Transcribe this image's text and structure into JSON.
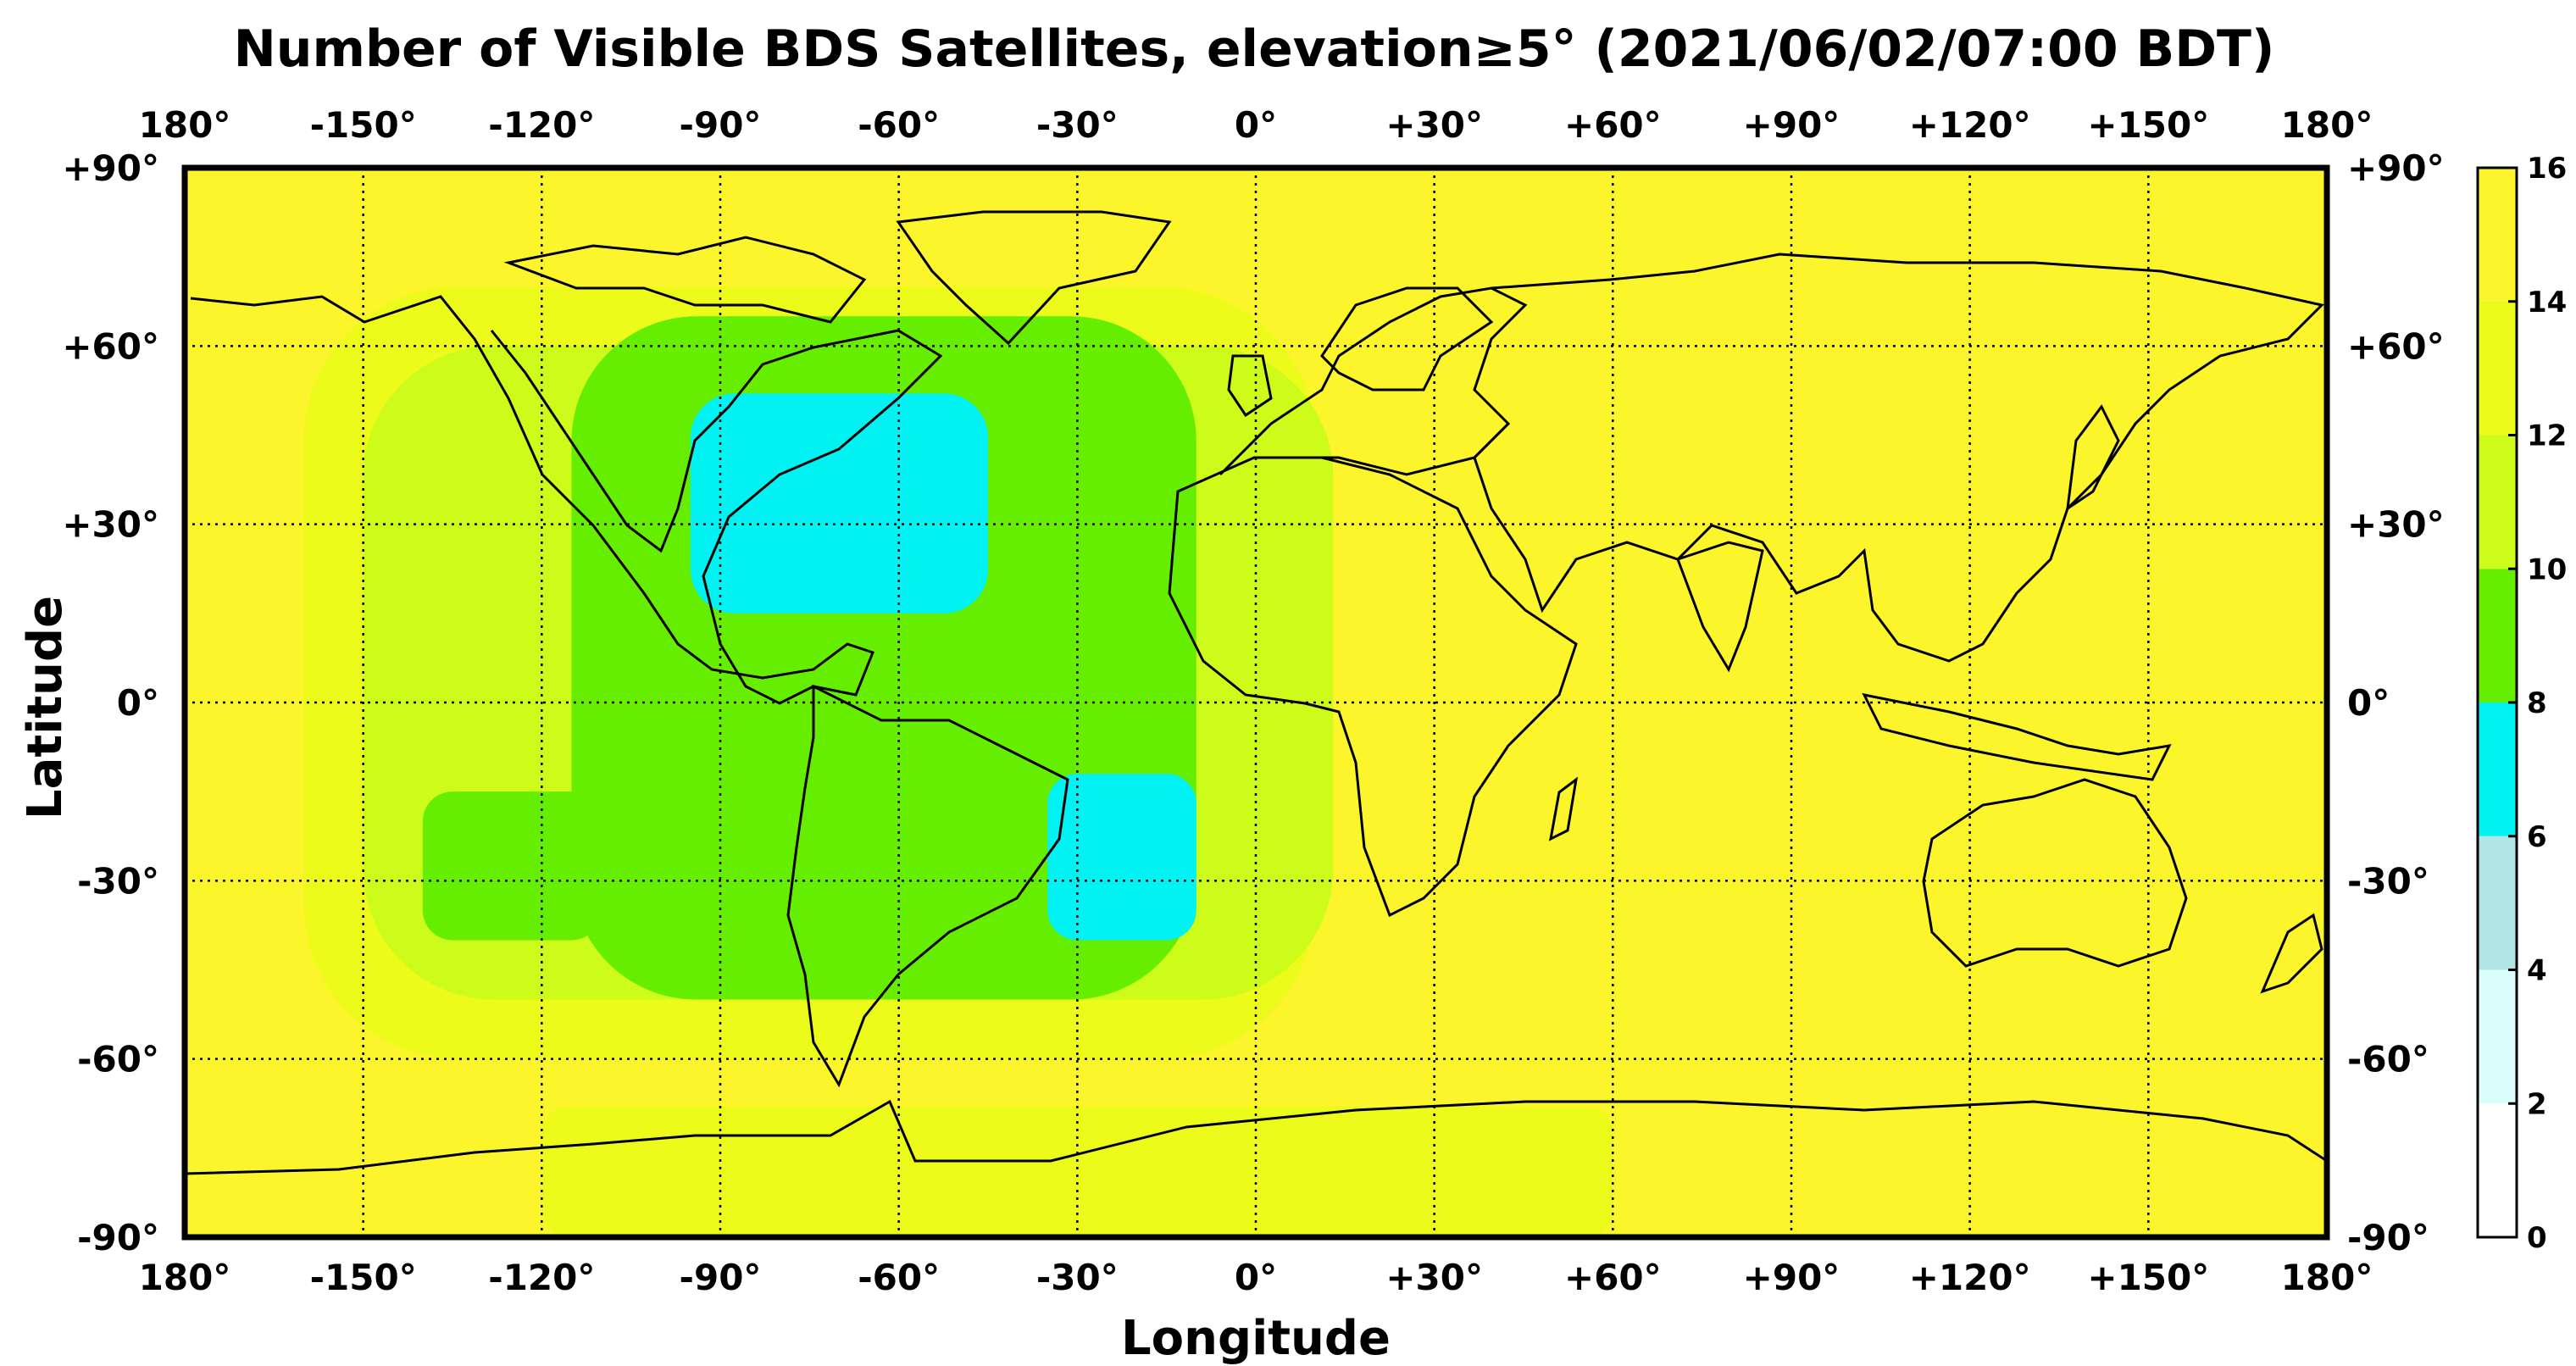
{
  "title": "Number of Visible BDS Satellites, elevation≥5° (2021/06/02/07:00 BDT)",
  "xlabel": "Longitude",
  "ylabel": "Latitude",
  "lon_ticks": [
    "180°",
    "-150°",
    "-120°",
    "-90°",
    "-60°",
    "-30°",
    "0°",
    "+30°",
    "+60°",
    "+90°",
    "+120°",
    "+150°",
    "180°"
  ],
  "lat_ticks": [
    "+90°",
    "+60°",
    "+30°",
    "0°",
    "-30°",
    "-60°",
    "-90°"
  ],
  "colorbar": {
    "ticks": [
      "16",
      "14",
      "12",
      "10",
      "8",
      "6",
      "4",
      "2",
      "0"
    ],
    "bands": [
      {
        "from": 0,
        "to": 2,
        "color": "#ffffff"
      },
      {
        "from": 2,
        "to": 4,
        "color": "#dcfdfd"
      },
      {
        "from": 4,
        "to": 6,
        "color": "#b0e6e6"
      },
      {
        "from": 6,
        "to": 8,
        "color": "#00f2f2"
      },
      {
        "from": 8,
        "to": 10,
        "color": "#66ee00"
      },
      {
        "from": 10,
        "to": 12,
        "color": "#cdfb1a"
      },
      {
        "from": 12,
        "to": 14,
        "color": "#ecfb1a"
      },
      {
        "from": 14,
        "to": 16,
        "color": "#fdf52c"
      }
    ]
  },
  "map_data": {
    "type": "gridded-map",
    "lon_range": [
      -180,
      180
    ],
    "lat_range": [
      -90,
      90
    ],
    "background_level": 15,
    "regions": [
      {
        "name": "pacific-outer",
        "level": 13,
        "lon": [
          -160,
          10
        ],
        "lat": [
          -60,
          70
        ]
      },
      {
        "name": "pacific-mid",
        "level": 11,
        "lon": [
          -150,
          13
        ],
        "lat": [
          -50,
          60
        ]
      },
      {
        "name": "americas-atlantic",
        "level": 9,
        "lon": [
          -115,
          -10
        ],
        "lat": [
          -50,
          65
        ]
      },
      {
        "name": "south-pacific",
        "level": 9,
        "lon": [
          -140,
          -110
        ],
        "lat": [
          -40,
          -15
        ]
      },
      {
        "name": "north-atlantic-low",
        "level": 7,
        "lon": [
          -95,
          -45
        ],
        "lat": [
          15,
          52
        ]
      },
      {
        "name": "south-atlantic-low",
        "level": 7,
        "lon": [
          -35,
          -10
        ],
        "lat": [
          -40,
          -12
        ]
      },
      {
        "name": "antarctic-patch",
        "level": 13,
        "lon": [
          -120,
          60
        ],
        "lat": [
          -90,
          -68
        ]
      }
    ]
  }
}
